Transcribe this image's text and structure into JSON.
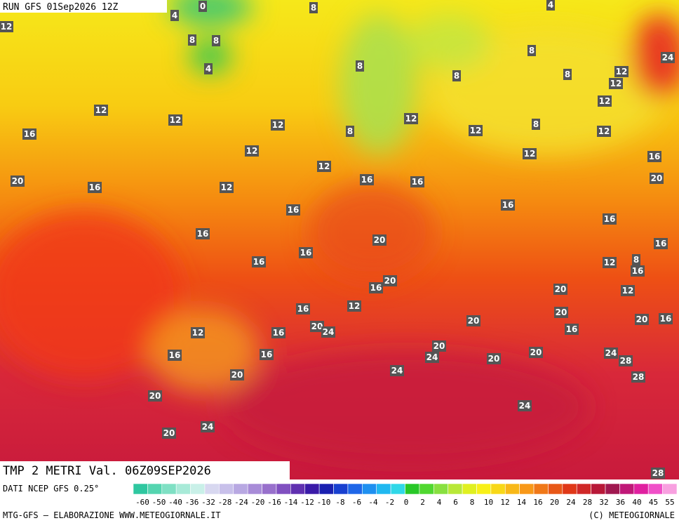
{
  "header": {
    "run": "RUN GFS 01Sep2026 12Z"
  },
  "map": {
    "title": "TMP 2 METRI Val. 06Z09SEP2026",
    "labels": [
      "0",
      "4",
      "8",
      "4",
      "12",
      "8",
      "8",
      "4",
      "8",
      "24",
      "8",
      "8",
      "8",
      "12",
      "12",
      "12",
      "12",
      "12",
      "12",
      "8",
      "12",
      "12",
      "12",
      "16",
      "8",
      "12",
      "12",
      "16",
      "12",
      "20",
      "16",
      "12",
      "16",
      "16",
      "20",
      "16",
      "16",
      "16",
      "16",
      "20",
      "16",
      "16",
      "8",
      "16",
      "12",
      "16",
      "20",
      "16",
      "20",
      "12",
      "16",
      "12",
      "20",
      "20",
      "20",
      "16",
      "20",
      "24",
      "12",
      "16",
      "16",
      "20",
      "16",
      "20",
      "24",
      "16",
      "24",
      "20",
      "28",
      "24",
      "20",
      "28",
      "20",
      "24",
      "24",
      "20",
      "28"
    ]
  },
  "colorbar": {
    "source": "DATI NCEP GFS 0.25°",
    "colors": [
      "#2fc7a0",
      "#55d5b0",
      "#7fe0c4",
      "#a8ead8",
      "#c9f0e8",
      "#d8d8f0",
      "#c8c0ea",
      "#b8a8e2",
      "#a88cd8",
      "#9870cc",
      "#8050c0",
      "#6030b0",
      "#3a1aa8",
      "#1a20b0",
      "#1840d0",
      "#1e66e8",
      "#1e90f0",
      "#20b8f0",
      "#30d8e8",
      "#28c828",
      "#50d830",
      "#88e040",
      "#b8e838",
      "#e0f020",
      "#f8f018",
      "#f8d818",
      "#f8b818",
      "#f89818",
      "#f07818",
      "#e85818",
      "#e03818",
      "#d02828",
      "#b81838",
      "#a01850",
      "#c01878",
      "#e020a0",
      "#f050c8",
      "#f8a0e0"
    ],
    "ticks": [
      "-60",
      "-50",
      "-40",
      "-36",
      "-32",
      "-28",
      "-24",
      "-20",
      "-16",
      "-14",
      "-12",
      "-10",
      "-8",
      "-6",
      "-4",
      "-2",
      "0",
      "2",
      "4",
      "6",
      "8",
      "10",
      "12",
      "14",
      "16",
      "20",
      "24",
      "28",
      "32",
      "36",
      "40",
      "45",
      "55"
    ]
  },
  "footer": {
    "left": "MTG-GFS — ELABORAZIONE WWW.METEOGIORNALE.IT",
    "right": "(C) METEOGIORNALE"
  }
}
